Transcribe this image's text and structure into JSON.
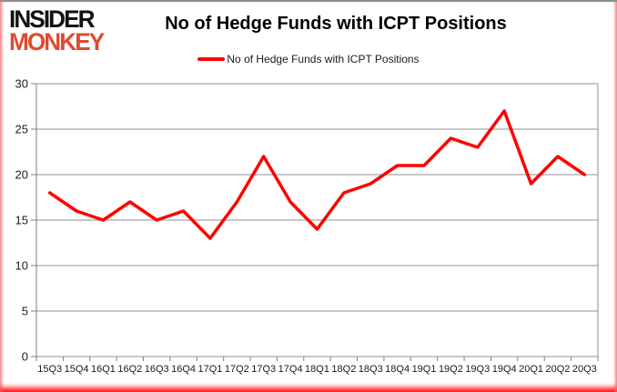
{
  "logo": {
    "line1": "INSIDER",
    "line2": "MONKEY"
  },
  "header": {
    "title": "No of Hedge Funds with ICPT Positions"
  },
  "legend": {
    "label": "No of Hedge Funds with ICPT Positions"
  },
  "colors": {
    "line": "#ff0000",
    "grid": "#909090",
    "axis": "#808080",
    "text": "#1a1a1a",
    "logo_black": "#121212",
    "logo_red": "#e04a2d"
  },
  "chart_data": {
    "type": "line",
    "title": "No of Hedge Funds with ICPT Positions",
    "xlabel": "",
    "ylabel": "",
    "categories": [
      "15Q3",
      "15Q4",
      "16Q1",
      "16Q2",
      "16Q3",
      "16Q4",
      "17Q1",
      "17Q2",
      "17Q3",
      "17Q4",
      "18Q1",
      "18Q2",
      "18Q3",
      "18Q4",
      "19Q1",
      "19Q2",
      "19Q3",
      "19Q4",
      "20Q1",
      "20Q2",
      "20Q3"
    ],
    "series": [
      {
        "name": "No of Hedge Funds with ICPT Positions",
        "values": [
          18,
          16,
          15,
          17,
          15,
          16,
          13,
          17,
          22,
          17,
          14,
          18,
          19,
          21,
          21,
          24,
          23,
          27,
          19,
          22,
          20
        ]
      }
    ],
    "ylim": [
      0,
      30
    ],
    "yticks": [
      0,
      5,
      10,
      15,
      20,
      25,
      30
    ],
    "grid": "horizontal",
    "legend_position": "top-center",
    "line_color": "#ff0000"
  }
}
